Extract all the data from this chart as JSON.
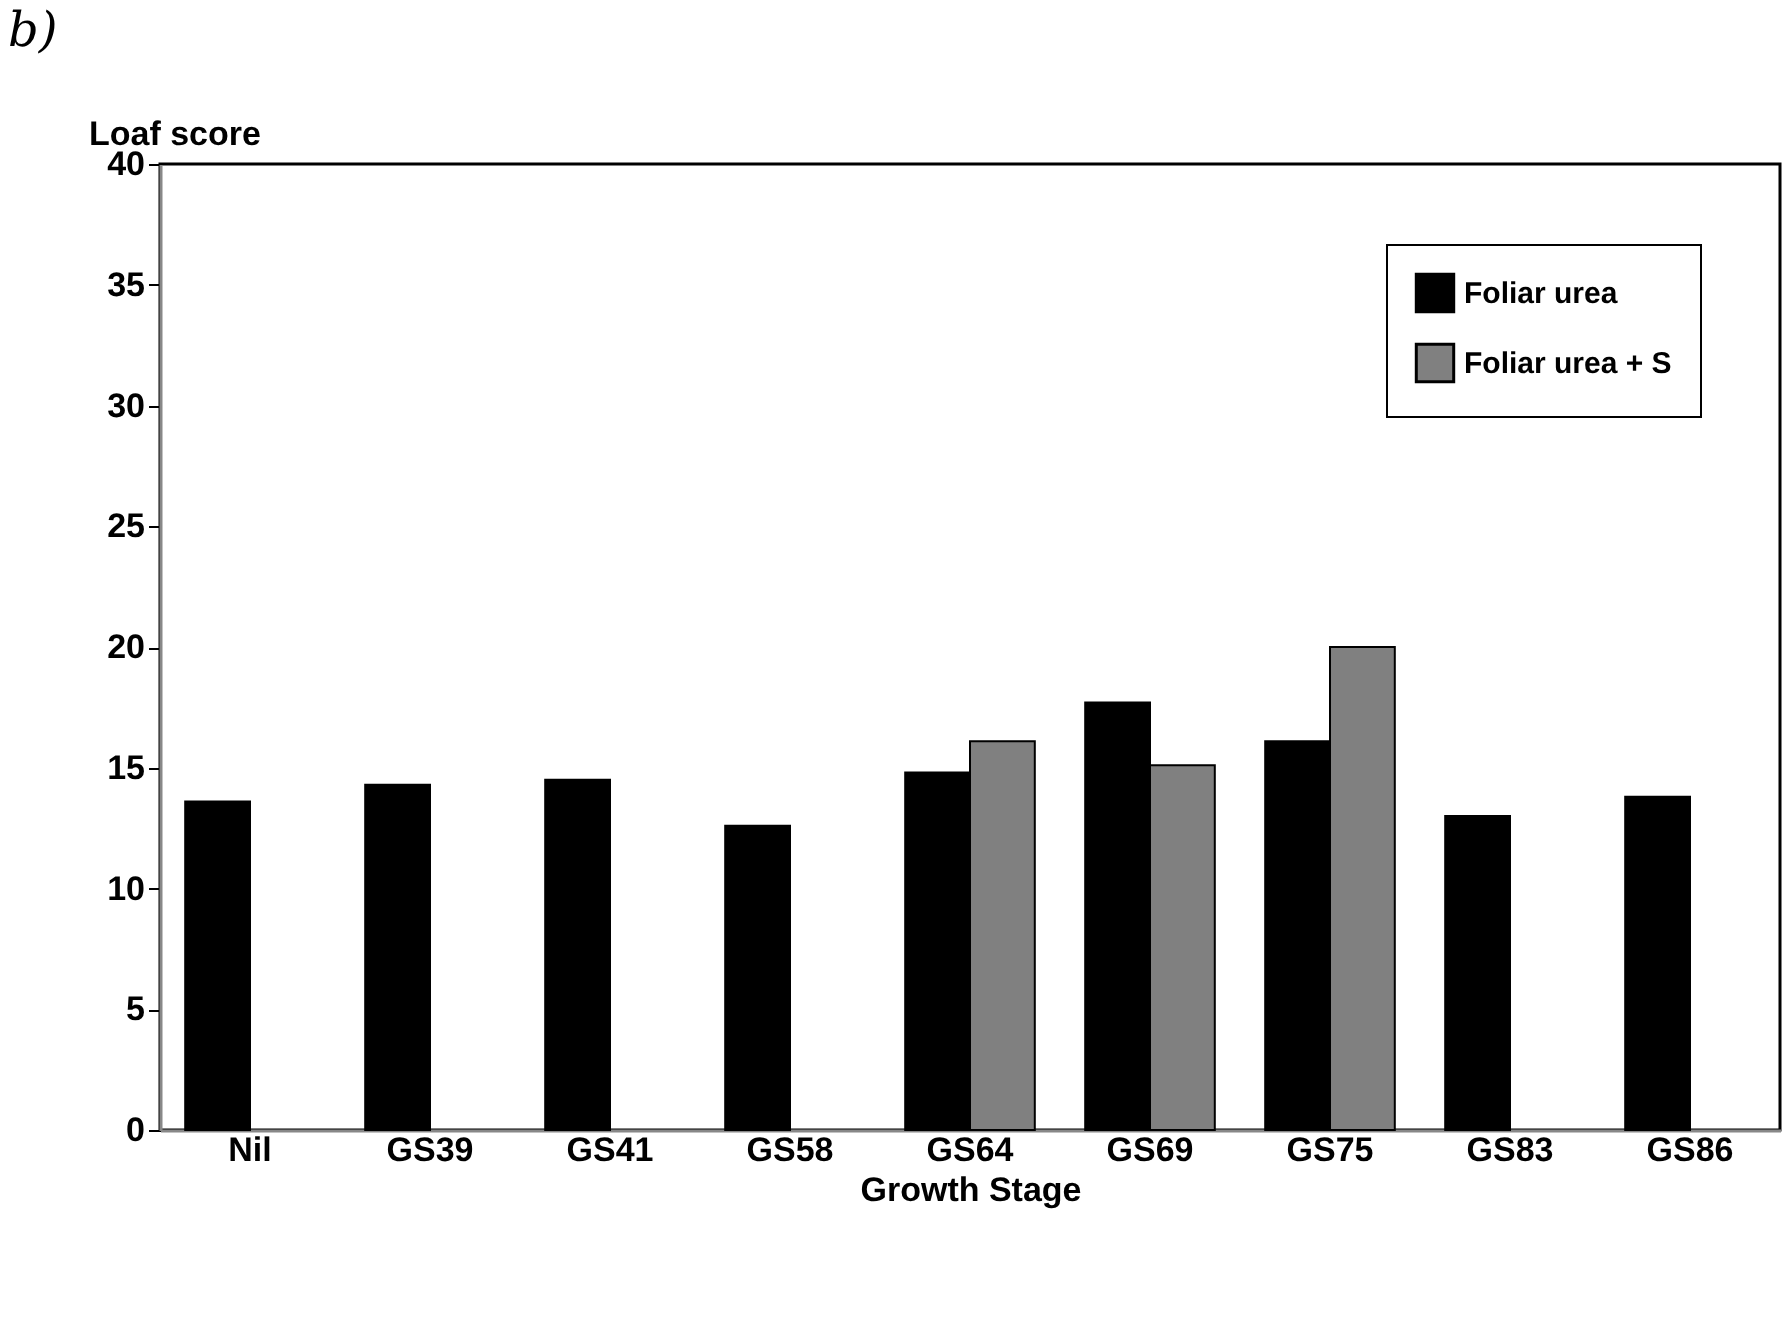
{
  "chart_data": {
    "type": "bar",
    "title": "b)",
    "xlabel": "Growth Stage",
    "ylabel": "Loaf score",
    "categories": [
      "Nil",
      "GS39",
      "GS41",
      "GS58",
      "GS64",
      "GS69",
      "GS75",
      "GS83",
      "GS86"
    ],
    "series": [
      {
        "name": "Foliar urea",
        "color": "#000000",
        "values": [
          13.6,
          14.3,
          14.5,
          12.6,
          14.8,
          17.7,
          16.1,
          13.0,
          13.8
        ]
      },
      {
        "name": "Foliar urea + S",
        "color": "#808080",
        "values": [
          null,
          null,
          null,
          null,
          16.1,
          15.1,
          20.0,
          null,
          null
        ]
      }
    ],
    "ylim": [
      0,
      40
    ],
    "yticks": [
      0,
      5,
      10,
      15,
      20,
      25,
      30,
      35,
      40
    ],
    "grid": false,
    "legend": "top right"
  }
}
